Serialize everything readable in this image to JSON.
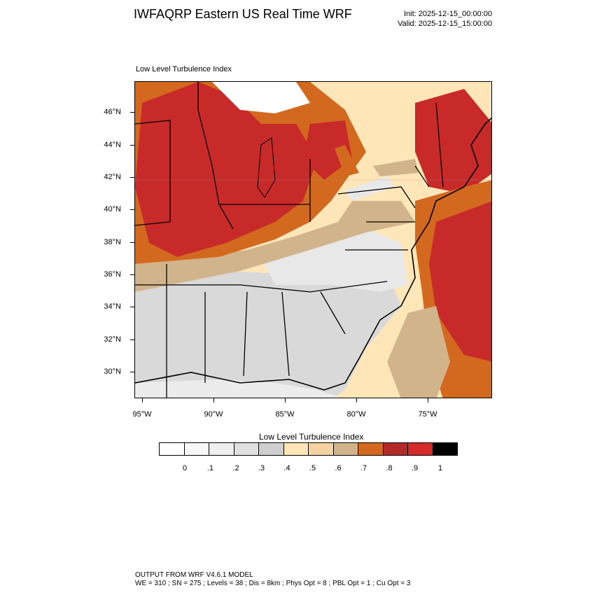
{
  "header": {
    "title": "IWFAQRP Eastern US Real Time WRF",
    "init": "Init: 2025-12-15_00:00:00",
    "valid": "Valid: 2025-12-15_15:00:00"
  },
  "panel": {
    "label": "Low Level Turbulence Index"
  },
  "axes": {
    "lat_labels": [
      "46°N",
      "44°N",
      "42°N",
      "40°N",
      "38°N",
      "36°N",
      "34°N",
      "32°N",
      "30°N"
    ],
    "lon_labels": [
      "95°W",
      "90°W",
      "85°W",
      "80°W",
      "75°W"
    ]
  },
  "colorbar": {
    "title": "Low Level Turbulence Index",
    "colors": [
      "#ffffff",
      "#f7f7f7",
      "#eeeeee",
      "#e0e0e0",
      "#cfcfcf",
      "#ffe6b8",
      "#f5d2a2",
      "#d2b48c",
      "#d2691e",
      "#b22a2a",
      "#d42a2a",
      "#000000"
    ],
    "labels": [
      "0",
      ".1",
      ".2",
      ".3",
      ".4",
      ".5",
      ".6",
      ".7",
      ".8",
      ".9",
      "1"
    ]
  },
  "footer": {
    "line1": "OUTPUT FROM WRF V4.6.1 MODEL",
    "line2": "WE = 310 ; SN = 275 ; Levels = 38 ; Dis = 8km ; Phys Opt = 8 ; PBL Opt = 1 ; Cu Opt = 3"
  }
}
